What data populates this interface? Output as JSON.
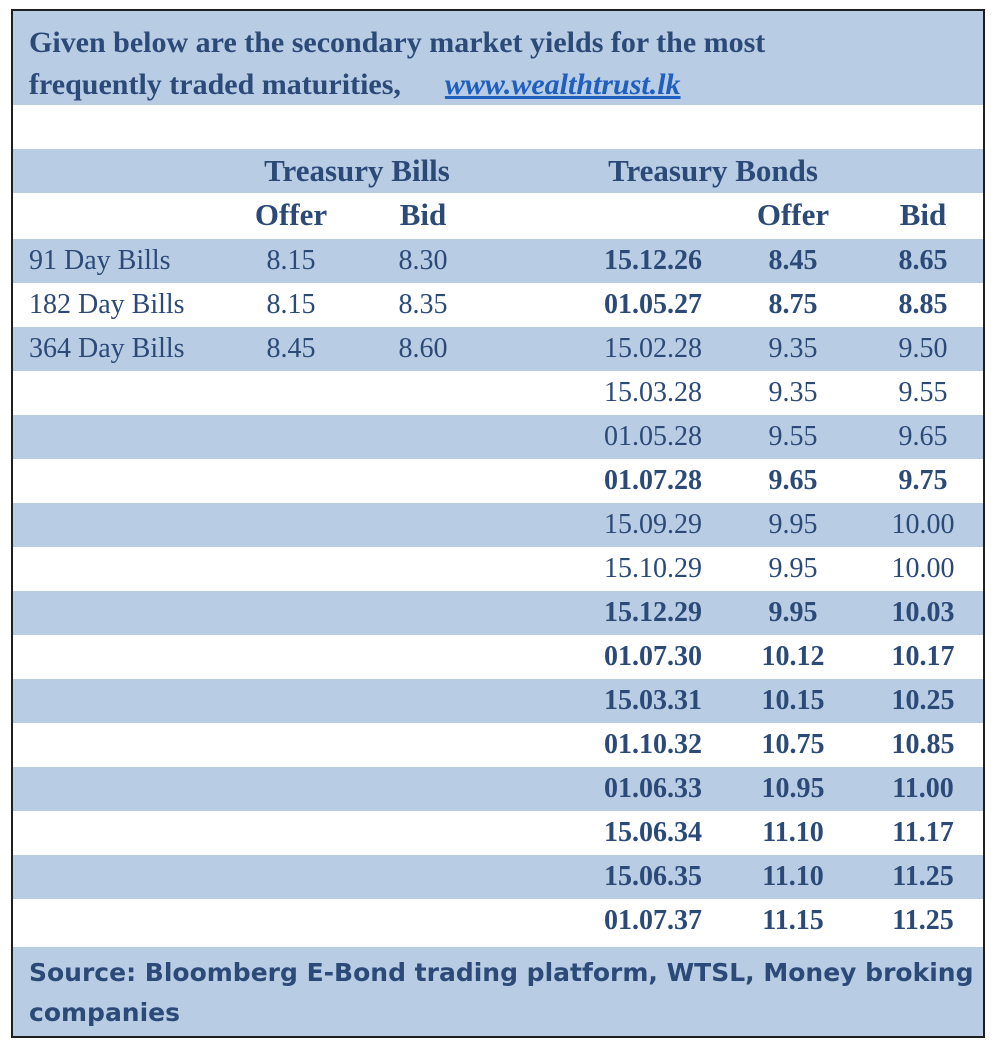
{
  "header": {
    "line1": "Given below are the secondary market yields for the most",
    "line2": "frequently traded maturities,",
    "link": "www.wealthtrust.lk"
  },
  "table": {
    "bills_title": "Treasury Bills",
    "bonds_title": "Treasury Bonds",
    "offer_label": "Offer",
    "bid_label": "Bid",
    "bills": [
      {
        "label": "91 Day Bills",
        "offer": "8.15",
        "bid": "8.30"
      },
      {
        "label": "182 Day Bills",
        "offer": "8.15",
        "bid": "8.35"
      },
      {
        "label": "364 Day Bills",
        "offer": "8.45",
        "bid": "8.60"
      }
    ],
    "bonds": [
      {
        "maturity": "15.12.26",
        "offer": "8.45",
        "bid": "8.65",
        "bold": true
      },
      {
        "maturity": "01.05.27",
        "offer": "8.75",
        "bid": "8.85",
        "bold": true
      },
      {
        "maturity": "15.02.28",
        "offer": "9.35",
        "bid": "9.50",
        "bold": false
      },
      {
        "maturity": "15.03.28",
        "offer": "9.35",
        "bid": "9.55",
        "bold": false
      },
      {
        "maturity": "01.05.28",
        "offer": "9.55",
        "bid": "9.65",
        "bold": false
      },
      {
        "maturity": "01.07.28",
        "offer": "9.65",
        "bid": "9.75",
        "bold": true
      },
      {
        "maturity": "15.09.29",
        "offer": "9.95",
        "bid": "10.00",
        "bold": false
      },
      {
        "maturity": "15.10.29",
        "offer": "9.95",
        "bid": "10.00",
        "bold": false
      },
      {
        "maturity": "15.12.29",
        "offer": "9.95",
        "bid": "10.03",
        "bold": true
      },
      {
        "maturity": "01.07.30",
        "offer": "10.12",
        "bid": "10.17",
        "bold": true
      },
      {
        "maturity": "15.03.31",
        "offer": "10.15",
        "bid": "10.25",
        "bold": true
      },
      {
        "maturity": "01.10.32",
        "offer": "10.75",
        "bid": "10.85",
        "bold": true
      },
      {
        "maturity": "01.06.33",
        "offer": "10.95",
        "bid": "11.00",
        "bold": true
      },
      {
        "maturity": "15.06.34",
        "offer": "11.10",
        "bid": "11.17",
        "bold": true
      },
      {
        "maturity": "15.06.35",
        "offer": "11.10",
        "bid": "11.25",
        "bold": true
      },
      {
        "maturity": "01.07.37",
        "offer": "11.15",
        "bid": "11.25",
        "bold": true
      }
    ]
  },
  "footer": {
    "source": "Source: Bloomberg E-Bond trading platform, WTSL, Money broking companies"
  },
  "colors": {
    "band": "#b8cce4",
    "text": "#2b4a78",
    "link": "#1f5fbf"
  }
}
